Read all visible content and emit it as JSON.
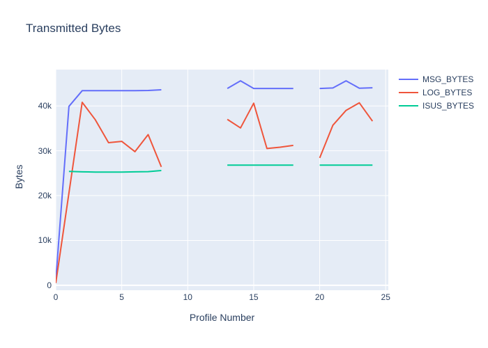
{
  "chart_data": {
    "type": "line",
    "title": "Transmitted Bytes",
    "xlabel": "Profile Number",
    "ylabel": "Bytes",
    "xlim": [
      0,
      25.2
    ],
    "ylim": [
      -1100,
      48100
    ],
    "grid": true,
    "legend_position": "right",
    "plot_bg_color": "#e5ecf6",
    "grid_color": "#ffffff",
    "text_color": "#2a3f5f",
    "x_ticks": [
      {
        "value": 0,
        "label": "0"
      },
      {
        "value": 5,
        "label": "5"
      },
      {
        "value": 10,
        "label": "10"
      },
      {
        "value": 15,
        "label": "15"
      },
      {
        "value": 20,
        "label": "20"
      },
      {
        "value": 25,
        "label": "25"
      }
    ],
    "y_ticks": [
      {
        "value": 0,
        "label": "0"
      },
      {
        "value": 10000,
        "label": "10k"
      },
      {
        "value": 20000,
        "label": "20k"
      },
      {
        "value": 30000,
        "label": "30k"
      },
      {
        "value": 40000,
        "label": "40k"
      }
    ],
    "series": [
      {
        "name": "MSG_BYTES",
        "color": "#636efa",
        "points": [
          [
            0,
            1100
          ],
          [
            1,
            39900
          ],
          [
            2,
            43400
          ],
          [
            3,
            43400
          ],
          [
            4,
            43400
          ],
          [
            5,
            43400
          ],
          [
            6,
            43400
          ],
          [
            7,
            43450
          ],
          [
            8,
            43600
          ],
          null,
          [
            13,
            43900
          ],
          [
            14,
            45600
          ],
          [
            15,
            43900
          ],
          [
            16,
            43900
          ],
          [
            17,
            43900
          ],
          [
            18,
            43900
          ],
          null,
          [
            20,
            43900
          ],
          [
            21,
            44000
          ],
          [
            22,
            45600
          ],
          [
            23,
            43950
          ],
          [
            24,
            44050
          ]
        ]
      },
      {
        "name": "LOG_BYTES",
        "color": "#ef553b",
        "points": [
          [
            0,
            500
          ],
          [
            1,
            20600
          ],
          [
            2,
            40800
          ],
          [
            3,
            36900
          ],
          [
            4,
            31800
          ],
          [
            5,
            32100
          ],
          [
            6,
            29800
          ],
          [
            7,
            33600
          ],
          [
            8,
            26400
          ],
          null,
          [
            13,
            37000
          ],
          [
            14,
            35100
          ],
          [
            15,
            40600
          ],
          [
            16,
            30500
          ],
          [
            17,
            30800
          ],
          [
            18,
            31200
          ],
          null,
          [
            20,
            28400
          ],
          [
            21,
            35700
          ],
          [
            22,
            39000
          ],
          [
            23,
            40700
          ],
          [
            24,
            36600
          ]
        ]
      },
      {
        "name": "ISUS_BYTES",
        "color": "#00cc96",
        "points": [
          [
            1,
            25400
          ],
          [
            2,
            25300
          ],
          [
            3,
            25250
          ],
          [
            4,
            25250
          ],
          [
            5,
            25250
          ],
          [
            6,
            25300
          ],
          [
            7,
            25350
          ],
          [
            8,
            25600
          ],
          null,
          [
            13,
            26800
          ],
          [
            14,
            26800
          ],
          [
            15,
            26800
          ],
          [
            16,
            26800
          ],
          [
            17,
            26800
          ],
          [
            18,
            26800
          ],
          null,
          [
            20,
            26800
          ],
          [
            21,
            26800
          ],
          [
            22,
            26800
          ],
          [
            23,
            26800
          ],
          [
            24,
            26800
          ]
        ]
      }
    ]
  }
}
